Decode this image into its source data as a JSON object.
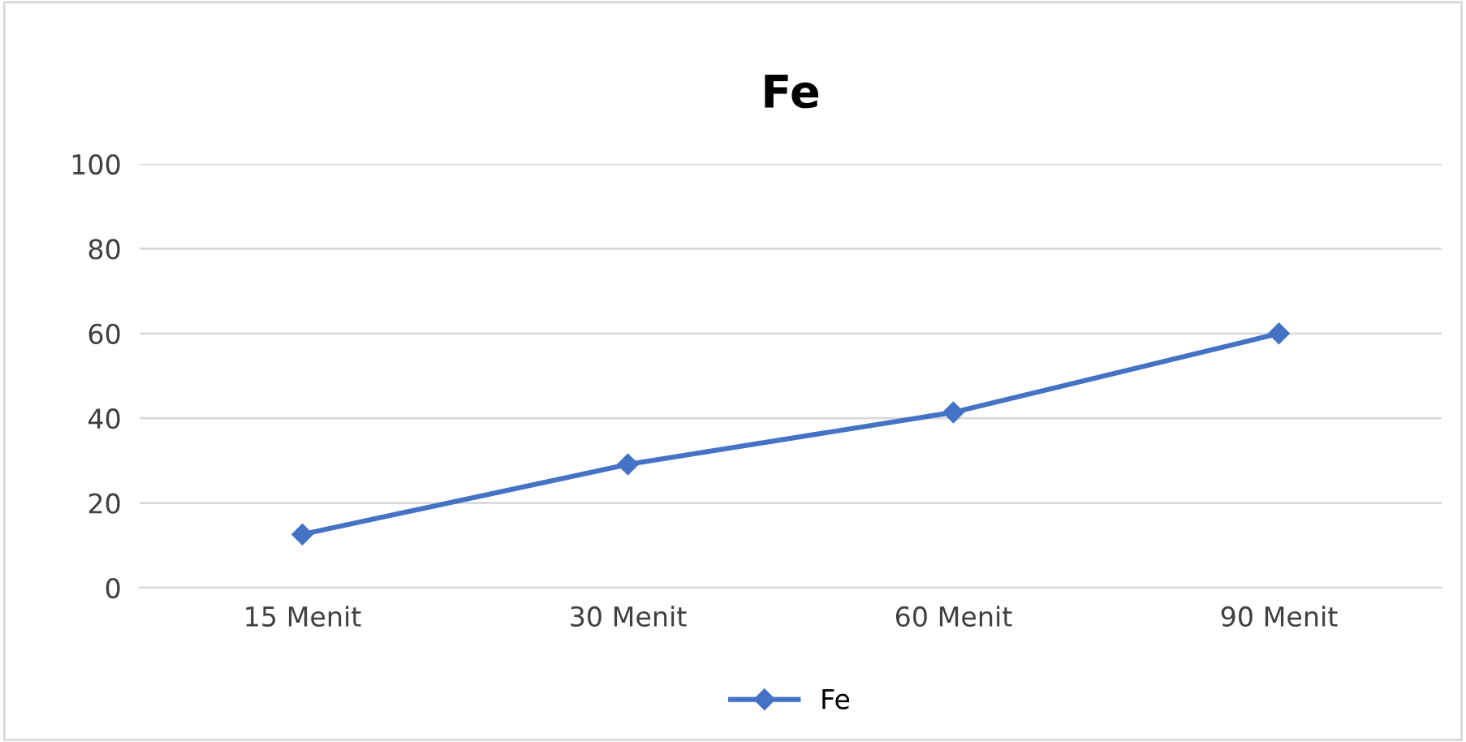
{
  "chart_data": {
    "type": "line",
    "title": "Fe",
    "categories": [
      "15 Menit",
      "30 Menit",
      "60 Menit",
      "90 Menit"
    ],
    "series": [
      {
        "name": "Fe",
        "color": "#4472c4",
        "values": [
          12.6,
          29.1,
          41.4,
          60
        ]
      }
    ],
    "ylim": [
      0,
      100
    ],
    "yticks": [
      0,
      20,
      40,
      60,
      80,
      100
    ],
    "grid": "y",
    "legend": "bottom",
    "marker": "diamond",
    "line_style": "solid"
  }
}
